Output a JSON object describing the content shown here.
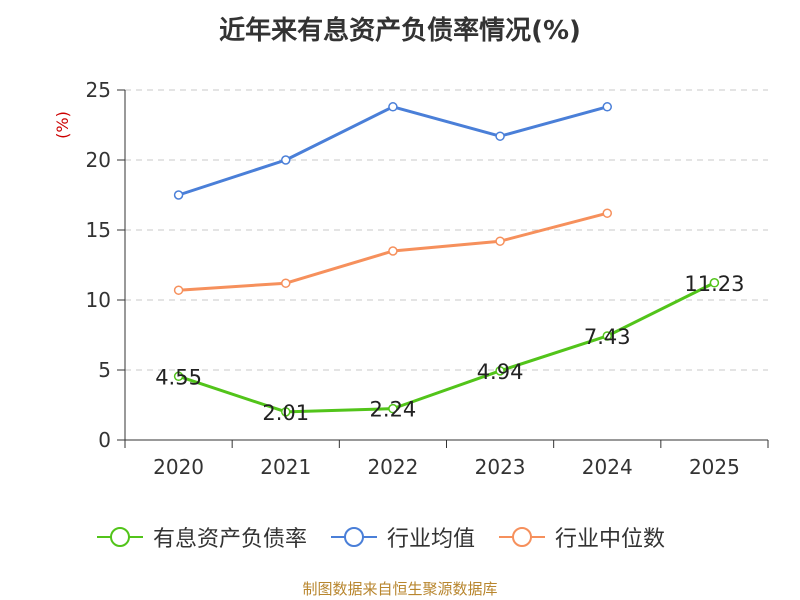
{
  "title": "近年来有息资产负债率情况(%)",
  "footer": "制图数据来自恒生聚源数据库",
  "colors": {
    "debt_ratio": "#52c41a",
    "industry_avg": "#4a7fd8",
    "industry_median": "#f6905c"
  },
  "chart_data": {
    "type": "line",
    "ylabel": "(%)",
    "ylim": [
      0,
      25
    ],
    "yticks": [
      "0",
      "5",
      "10",
      "15",
      "20",
      "25"
    ],
    "categories": [
      "2020",
      "2021",
      "2022",
      "2023",
      "2024",
      "2025"
    ],
    "grid": true,
    "legend_position": "bottom",
    "series": [
      {
        "name": "有息资产负债率",
        "values": [
          4.55,
          2.01,
          2.24,
          4.94,
          7.43,
          11.23
        ],
        "labels": [
          "4.55",
          "2.01",
          "2.24",
          "4.94",
          "7.43",
          "11.23"
        ]
      },
      {
        "name": "行业均值",
        "values": [
          17.5,
          20.0,
          23.8,
          21.7,
          23.8,
          null
        ]
      },
      {
        "name": "行业中位数",
        "values": [
          10.7,
          11.2,
          13.5,
          14.2,
          16.2,
          null
        ]
      }
    ]
  }
}
